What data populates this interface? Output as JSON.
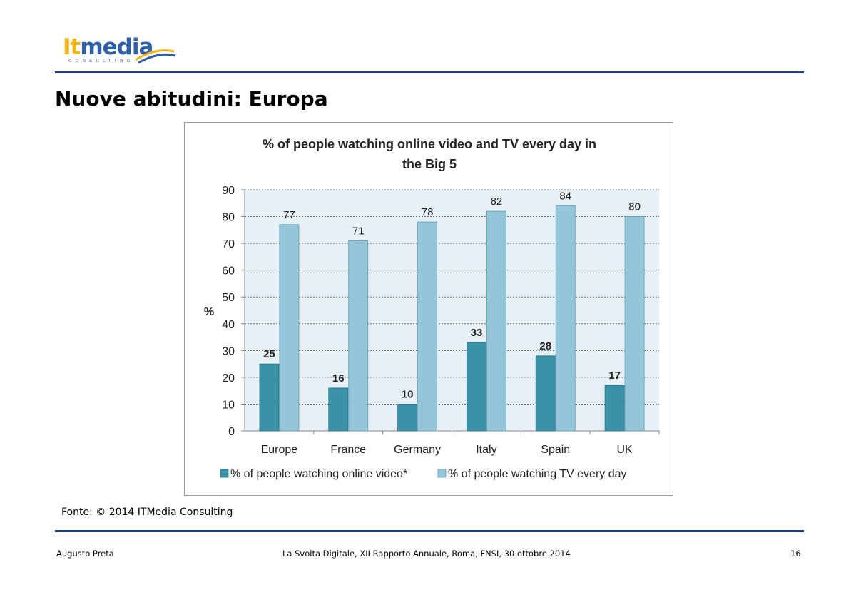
{
  "logo": {
    "part1": "It",
    "part2": "media",
    "subtitle": "CONSULTING"
  },
  "page_title": "Nuove abitudini: Europa",
  "source": "Fonte: © 2014 ITMedia Consulting",
  "footer": {
    "author": "Augusto Preta",
    "event": "La Svolta Digitale, XII Rapporto Annuale, Roma, FNSI, 30 ottobre 2014",
    "page_number": "16"
  },
  "colors": {
    "series1": "#3a92a8",
    "series2": "#95c5d8",
    "plot_background": "#e7f0f6",
    "rule": "#1f3f87"
  },
  "chart_data": {
    "type": "bar",
    "title": "% of people watching online video and TV every day in the Big 5",
    "title_lines": [
      "% of people watching online video and TV every day in",
      "the Big 5"
    ],
    "ylabel": "%",
    "xlabel": "",
    "ylim": [
      0,
      90
    ],
    "yticks": [
      0,
      10,
      20,
      30,
      40,
      50,
      60,
      70,
      80,
      90
    ],
    "grid": true,
    "legend": "bottom",
    "categories": [
      "Europe",
      "France",
      "Germany",
      "Italy",
      "Spain",
      "UK"
    ],
    "series": [
      {
        "name": "% of people watching online video*",
        "values": [
          25,
          16,
          10,
          33,
          28,
          17
        ],
        "color": "#3a92a8"
      },
      {
        "name": "% of people watching TV every day",
        "values": [
          77,
          71,
          78,
          82,
          84,
          80
        ],
        "color": "#95c5d8"
      }
    ]
  }
}
